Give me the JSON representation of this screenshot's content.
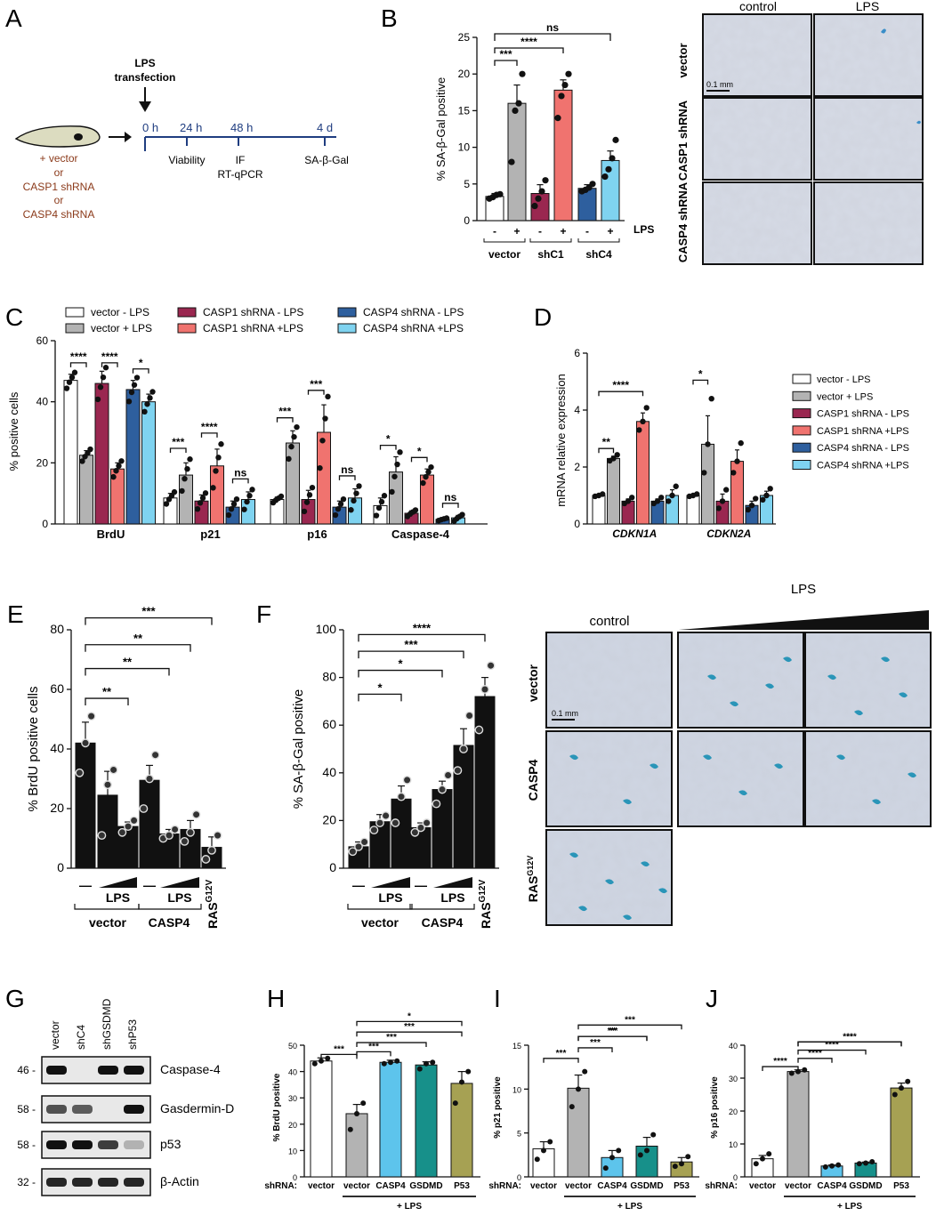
{
  "colors": {
    "white": "#ffffff",
    "grey": "#b3b3b3",
    "casp1_minus": "#9a2750",
    "casp1_plus": "#f0736f",
    "casp4_minus": "#2e5f9e",
    "casp4_plus": "#7fd3f0",
    "black": "#111111",
    "cyan": "#5dc4ec",
    "teal": "#17908a",
    "olive": "#a6a153",
    "darkred": "#8b3a1a"
  },
  "panelA": {
    "label": "A",
    "lps": "LPS",
    "transfection": "transfection",
    "t0": "0 h",
    "t24": "24 h",
    "t48": "48 h",
    "t4d": "4 d",
    "viability": "Viability",
    "if": "IF",
    "rtqpcr": "RT-qPCR",
    "sagal": "SA-β-Gal",
    "c1": "+ vector",
    "c2": "or",
    "c3": "CASP1 shRNA",
    "c4": "or",
    "c5": "CASP4 shRNA"
  },
  "panelB": {
    "label": "B",
    "ylabel": "% SA-β-Gal positive",
    "lps": "LPS",
    "groups": [
      "vector",
      "shC1",
      "shC4"
    ],
    "signs": [
      "-",
      "+",
      "-",
      "+",
      "-",
      "+"
    ],
    "sig": [
      "***",
      "****",
      "ns"
    ],
    "img_cols": [
      "control",
      "LPS"
    ],
    "img_rows": [
      "vector",
      "CASP1 shRNA",
      "CASP4 shRNA"
    ],
    "scale": "0.1 mm"
  },
  "panelC": {
    "label": "C",
    "ylabel": "% positive cells",
    "groups": [
      "BrdU",
      "p21",
      "p16",
      "Caspase-4"
    ],
    "legend": [
      "vector - LPS",
      "vector + LPS",
      "CASP1 shRNA - LPS",
      "CASP1 shRNA +LPS",
      "CASP4 shRNA - LPS",
      "CASP4 shRNA +LPS"
    ],
    "sig": [
      "****",
      "****",
      "*",
      "***",
      "****",
      "ns",
      "***",
      "***",
      "ns",
      "*",
      "*",
      "ns"
    ]
  },
  "panelD": {
    "label": "D",
    "ylabel": "mRNA relative expression",
    "groups": [
      "CDKN1A",
      "CDKN2A"
    ],
    "legend": [
      "vector - LPS",
      "vector + LPS",
      "CASP1 shRNA - LPS",
      "CASP1 shRNA +LPS",
      "CASP4 shRNA - LPS",
      "CASP4 shRNA +LPS"
    ],
    "sig": [
      "**",
      "****",
      "*"
    ]
  },
  "panelE": {
    "label": "E",
    "ylabel": "% BrdU positive cells",
    "dash": "—",
    "lps": "LPS",
    "vector": "vector",
    "casp4": "CASP4",
    "ras": "RAS",
    "ras_sup": "G12V",
    "sig": [
      "***",
      "**",
      "**",
      "**"
    ]
  },
  "panelF": {
    "label": "F",
    "ylabel": "% SA-β-Gal positive",
    "dash": "—",
    "lps": "LPS",
    "vector": "vector",
    "casp4": "CASP4",
    "ras": "RAS",
    "ras_sup": "G12V",
    "sig": [
      "****",
      "***",
      "*",
      "*"
    ],
    "img_control": "control",
    "img_lps": "LPS",
    "img_rows": [
      "vector",
      "CASP4",
      "RAS"
    ],
    "scale": "0.1 mm"
  },
  "panelG": {
    "label": "G",
    "lanes": [
      "vector",
      "shC4",
      "shGSDMD",
      "shP53"
    ],
    "proteins": [
      "Caspase-4",
      "Gasdermin-D",
      "p53",
      "β-Actin"
    ],
    "mw": [
      "46 -",
      "58 -",
      "58 -",
      "32 -"
    ]
  },
  "panelH": {
    "label": "H",
    "ylabel": "% BrdU positive",
    "shrna": "shRNA:",
    "cats": [
      "vector",
      "vector",
      "CASP4",
      "GSDMD",
      "P53"
    ],
    "plus_lps": "+ LPS",
    "sig": [
      "***",
      "***",
      "***",
      "***",
      "*"
    ]
  },
  "panelI": {
    "label": "I",
    "ylabel": "% p21 positive",
    "shrna": "shRNA:",
    "cats": [
      "vector",
      "vector",
      "CASP4",
      "GSDMD",
      "P53"
    ],
    "plus_lps": "+ LPS",
    "sig": [
      "***",
      "***",
      "***",
      "**",
      "***"
    ]
  },
  "panelJ": {
    "label": "J",
    "ylabel": "% p16 positive",
    "shrna": "shRNA:",
    "cats": [
      "vector",
      "vector",
      "CASP4",
      "GSDMD",
      "P53"
    ],
    "plus_lps": "+ LPS",
    "sig": [
      "****",
      "****",
      "****",
      "****",
      "**"
    ]
  },
  "chart_data": [
    {
      "type": "bar",
      "id": "B",
      "ylabel": "% SA-β-Gal positive",
      "ylim": [
        0,
        25
      ],
      "yticks": [
        0,
        5,
        10,
        15,
        20,
        25
      ],
      "categories": [
        "vector -",
        "vector +",
        "shC1 -",
        "shC1 +",
        "shC4 -",
        "shC4 +"
      ],
      "values": [
        3.3,
        16,
        3.7,
        17.8,
        4.4,
        8.2
      ],
      "errors": [
        0.4,
        2.5,
        1.2,
        1.4,
        0.5,
        1.3
      ],
      "points": [
        [
          3,
          3.2,
          3.5,
          3.6
        ],
        [
          8,
          15,
          16,
          20
        ],
        [
          2,
          3,
          4,
          5.5
        ],
        [
          14,
          17,
          18.5,
          20
        ],
        [
          4,
          4.2,
          4.5,
          5
        ],
        [
          6,
          7,
          8.5,
          11
        ]
      ]
    },
    {
      "type": "bar",
      "id": "C",
      "ylabel": "% positive cells",
      "ylim": [
        0,
        60
      ],
      "yticks": [
        0,
        20,
        40,
        60
      ],
      "groups": [
        "BrdU",
        "p21",
        "p16",
        "Caspase-4"
      ],
      "series": [
        {
          "name": "vector - LPS",
          "values": [
            47,
            8.5,
            8,
            6
          ],
          "errors": [
            2,
            1.5,
            0.8,
            2.5
          ]
        },
        {
          "name": "vector + LPS",
          "values": [
            22.5,
            16,
            26.5,
            17
          ],
          "errors": [
            1.5,
            4,
            4,
            5
          ]
        },
        {
          "name": "CASP1 shRNA - LPS",
          "values": [
            46,
            7.5,
            8,
            3.5
          ],
          "errors": [
            4,
            2,
            3,
            0.8
          ]
        },
        {
          "name": "CASP1 shRNA +LPS",
          "values": [
            18,
            19,
            30,
            16
          ],
          "errors": [
            2,
            5.5,
            9,
            2
          ]
        },
        {
          "name": "CASP4 shRNA - LPS",
          "values": [
            44,
            5.5,
            5.5,
            1.5
          ],
          "errors": [
            3,
            2,
            2,
            0.3
          ]
        },
        {
          "name": "CASP4 shRNA +LPS",
          "values": [
            40,
            8,
            8.5,
            2
          ],
          "errors": [
            2.5,
            2.5,
            3,
            0.8
          ]
        }
      ]
    },
    {
      "type": "bar",
      "id": "D",
      "ylabel": "mRNA relative expression",
      "ylim": [
        0,
        6
      ],
      "yticks": [
        0,
        2,
        4,
        6
      ],
      "groups": [
        "CDKN1A",
        "CDKN2A"
      ],
      "series": [
        {
          "name": "vector - LPS",
          "values": [
            1,
            1
          ],
          "errors": [
            0.03,
            0.03
          ]
        },
        {
          "name": "vector + LPS",
          "values": [
            2.3,
            2.8
          ],
          "errors": [
            0.08,
            1
          ]
        },
        {
          "name": "CASP1 shRNA - LPS",
          "values": [
            0.8,
            0.8
          ],
          "errors": [
            0.08,
            0.25
          ]
        },
        {
          "name": "CASP1 shRNA +LPS",
          "values": [
            3.6,
            2.2
          ],
          "errors": [
            0.3,
            0.4
          ]
        },
        {
          "name": "CASP4 shRNA - LPS",
          "values": [
            0.8,
            0.65
          ],
          "errors": [
            0.08,
            0.15
          ]
        },
        {
          "name": "CASP4 shRNA +LPS",
          "values": [
            1,
            1
          ],
          "errors": [
            0.2,
            0.15
          ]
        }
      ]
    },
    {
      "type": "bar",
      "id": "E",
      "ylabel": "% BrdU positive cells",
      "ylim": [
        0,
        80
      ],
      "yticks": [
        0,
        20,
        40,
        60,
        80
      ],
      "categories": [
        "vector —",
        "vector LPS low",
        "vector LPS high",
        "CASP4 —",
        "CASP4 LPS low",
        "CASP4 LPS high",
        "RAS G12V"
      ],
      "values": [
        42,
        24.5,
        14,
        29.5,
        11.5,
        13,
        7
      ],
      "errors": [
        7,
        8,
        1.5,
        5,
        1.5,
        3,
        3.5
      ],
      "points": [
        [
          32,
          42,
          51
        ],
        [
          11,
          28,
          33
        ],
        [
          12,
          14,
          16
        ],
        [
          20,
          30,
          38
        ],
        [
          10,
          11,
          13
        ],
        [
          9,
          12,
          18
        ],
        [
          3,
          6,
          11
        ]
      ]
    },
    {
      "type": "bar",
      "id": "F",
      "ylabel": "% SA-β-Gal positive",
      "ylim": [
        0,
        100
      ],
      "yticks": [
        0,
        20,
        40,
        60,
        80,
        100
      ],
      "categories": [
        "vector —",
        "vector LPS low",
        "vector LPS high",
        "CASP4 —",
        "CASP4 LPS low",
        "CASP4 LPS high",
        "RAS G12V"
      ],
      "values": [
        9,
        19.5,
        29,
        17,
        33,
        51.5,
        72
      ],
      "errors": [
        2,
        3,
        5.5,
        2,
        3.5,
        7,
        8
      ],
      "points": [
        [
          7,
          9,
          11
        ],
        [
          16,
          19,
          22
        ],
        [
          19,
          30,
          37
        ],
        [
          15,
          17,
          19
        ],
        [
          27,
          33,
          39
        ],
        [
          41,
          50,
          64
        ],
        [
          58,
          75,
          85
        ]
      ]
    },
    {
      "type": "bar",
      "id": "H",
      "ylabel": "% BrdU positive",
      "ylim": [
        0,
        50
      ],
      "yticks": [
        0,
        10,
        20,
        30,
        40,
        50
      ],
      "categories": [
        "vector",
        "vector +LPS",
        "CASP4 +LPS",
        "GSDMD +LPS",
        "P53 +LPS"
      ],
      "values": [
        44,
        24,
        43.5,
        42.5,
        35.5
      ],
      "errors": [
        1.2,
        3.5,
        0.8,
        1.2,
        4.5
      ],
      "points": [
        [
          43,
          44,
          45
        ],
        [
          18,
          24,
          28
        ],
        [
          43,
          43.5,
          44
        ],
        [
          41,
          43,
          43.5
        ],
        [
          28,
          36,
          40
        ]
      ]
    },
    {
      "type": "bar",
      "id": "I",
      "ylabel": "% p21 positive",
      "ylim": [
        0,
        15
      ],
      "yticks": [
        0,
        5,
        10,
        15
      ],
      "categories": [
        "vector",
        "vector +LPS",
        "CASP4 +LPS",
        "GSDMD +LPS",
        "P53 +LPS"
      ],
      "values": [
        3.2,
        10.1,
        2.2,
        3.5,
        1.7
      ],
      "errors": [
        0.8,
        1.5,
        0.8,
        1,
        0.5
      ],
      "points": [
        [
          2,
          3,
          4
        ],
        [
          8,
          10,
          12
        ],
        [
          1,
          2.2,
          3
        ],
        [
          2.5,
          3,
          4.8
        ],
        [
          1.2,
          1.5,
          2.3
        ]
      ]
    },
    {
      "type": "bar",
      "id": "J",
      "ylabel": "% p16 positive",
      "ylim": [
        0,
        40
      ],
      "yticks": [
        0,
        10,
        20,
        30,
        40
      ],
      "categories": [
        "vector",
        "vector +LPS",
        "CASP4 +LPS",
        "GSDMD +LPS",
        "P53 +LPS"
      ],
      "values": [
        5.5,
        32,
        3.3,
        4.2,
        27
      ],
      "errors": [
        1,
        0.5,
        0.3,
        0.3,
        1.5
      ],
      "points": [
        [
          4,
          5.5,
          7
        ],
        [
          31.5,
          32,
          32.5
        ],
        [
          3,
          3.3,
          3.6
        ],
        [
          4,
          4.2,
          4.6
        ],
        [
          25,
          27,
          29
        ]
      ]
    }
  ]
}
